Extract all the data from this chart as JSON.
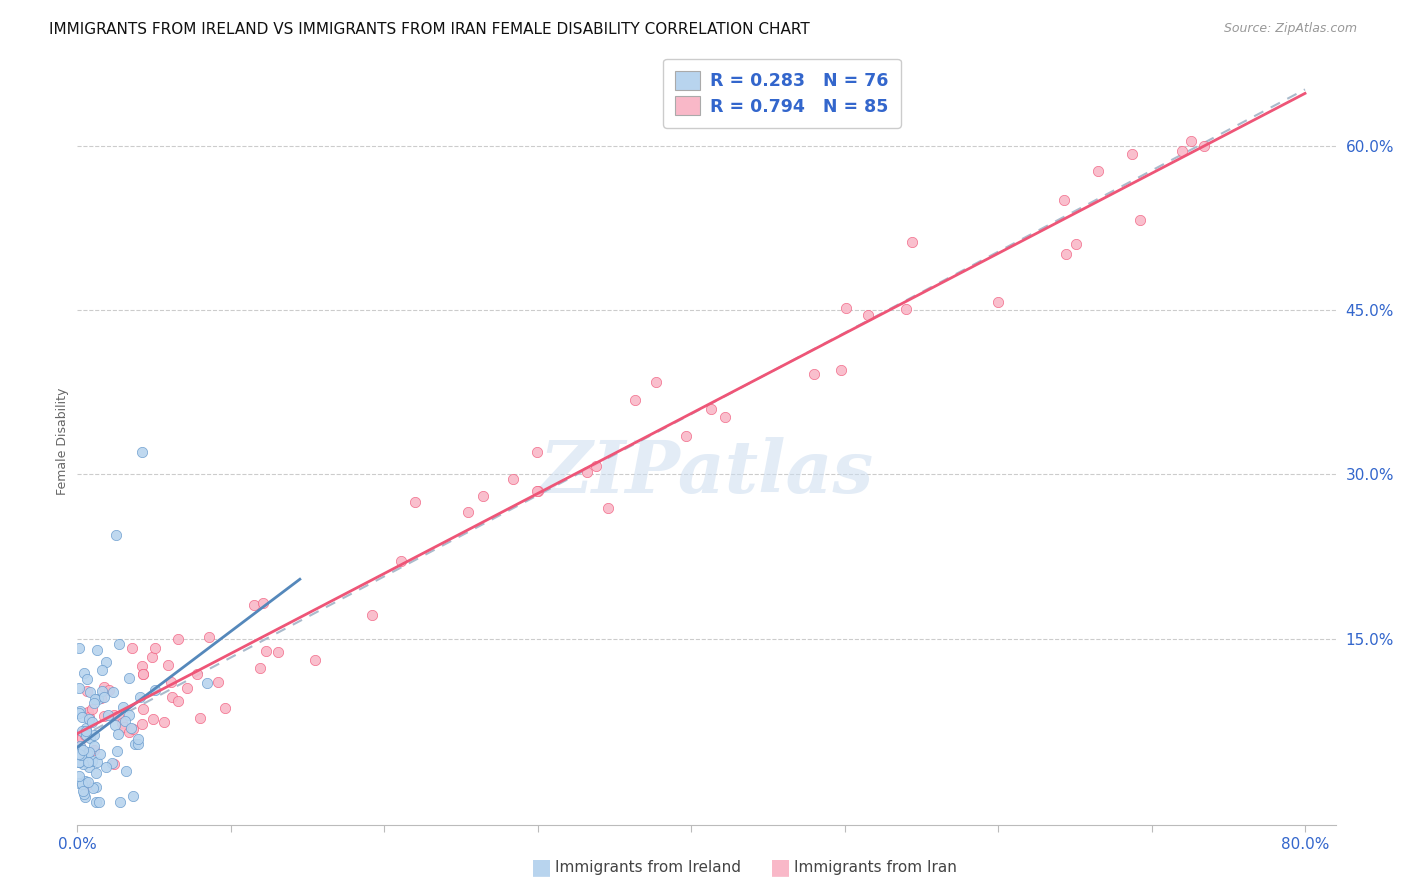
{
  "title": "IMMIGRANTS FROM IRELAND VS IMMIGRANTS FROM IRAN FEMALE DISABILITY CORRELATION CHART",
  "source": "Source: ZipAtlas.com",
  "ylabel": "Female Disability",
  "xlim": [
    0.0,
    0.82
  ],
  "ylim": [
    -0.02,
    0.68
  ],
  "xticks": [
    0.0,
    0.1,
    0.2,
    0.3,
    0.4,
    0.5,
    0.6,
    0.7,
    0.8
  ],
  "xticklabels": [
    "0.0%",
    "",
    "",
    "",
    "",
    "",
    "",
    "",
    "80.0%"
  ],
  "ytick_positions": [
    0.15,
    0.3,
    0.45,
    0.6
  ],
  "ytick_labels": [
    "15.0%",
    "30.0%",
    "45.0%",
    "60.0%"
  ],
  "ireland_fill_color": "#b8d4ee",
  "iran_fill_color": "#f9b8c8",
  "ireland_edge_color": "#6699cc",
  "iran_edge_color": "#f06080",
  "ireland_trend_color": "#5588bb",
  "iran_trend_color": "#ee5577",
  "combined_trend_color": "#aabbcc",
  "legend_text_color": "#3366cc",
  "legend_label_ireland": "Immigrants from Ireland",
  "legend_label_iran": "Immigrants from Iran",
  "watermark": "ZIPatlas",
  "title_fontsize": 11,
  "source_fontsize": 9,
  "tick_fontsize": 11,
  "ylabel_fontsize": 9
}
